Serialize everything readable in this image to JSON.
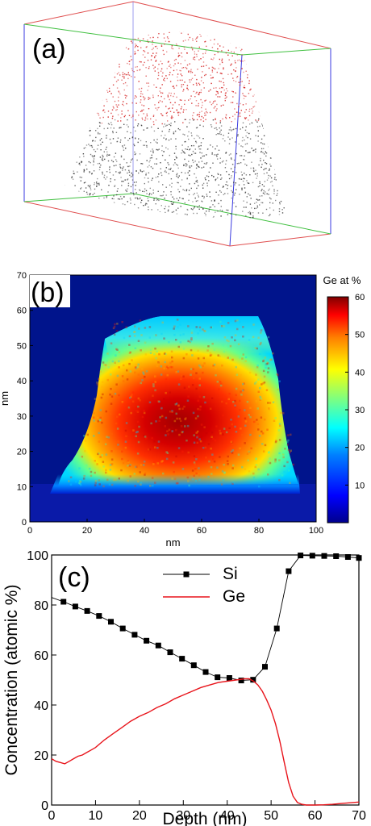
{
  "panels": {
    "a": {
      "label": "(a)"
    },
    "b": {
      "label": "(b)"
    },
    "c": {
      "label": "(c)"
    }
  },
  "colors": {
    "si_series": "#000000",
    "ge_series": "#e8141b",
    "box_red": "#e05050",
    "box_green": "#40c040",
    "box_blue": "#3a3ae0",
    "heatmap_background": "#00148c"
  },
  "chart_data": [
    {
      "type": "scatter",
      "panel": "a",
      "description_free": true,
      "point_colors": [
        "#d42020",
        "#3a3a3a"
      ]
    },
    {
      "type": "heatmap",
      "panel": "b",
      "xlabel": "nm",
      "ylabel": "nm",
      "xlim": [
        0,
        100
      ],
      "ylim": [
        0,
        70
      ],
      "x_ticks": [
        0,
        20,
        40,
        60,
        80,
        100
      ],
      "y_ticks": [
        0,
        10,
        20,
        30,
        40,
        50,
        60,
        70
      ],
      "colorbar": {
        "title": "Ge at %",
        "range": [
          0,
          60
        ],
        "ticks": [
          10,
          20,
          30,
          40,
          50,
          60
        ]
      }
    },
    {
      "type": "line",
      "panel": "c",
      "xlabel": "Depth (nm)",
      "ylabel": "Concentration (atomic %)",
      "xlim": [
        0,
        70
      ],
      "ylim": [
        0,
        100
      ],
      "x_ticks": [
        0,
        10,
        20,
        30,
        40,
        50,
        60,
        70
      ],
      "y_ticks": [
        0,
        20,
        40,
        60,
        80,
        100
      ],
      "legend_position": "top-center",
      "series": [
        {
          "name": "Si",
          "marker": "square",
          "x": [
            0,
            2.7,
            5.4,
            8.1,
            10.8,
            13.5,
            16.2,
            18.9,
            21.6,
            24.3,
            27.0,
            29.7,
            32.4,
            35.1,
            37.8,
            40.5,
            43.2,
            45.9,
            48.6,
            51.3,
            54.0,
            56.7,
            59.4,
            62.1,
            64.8,
            67.5,
            70.0
          ],
          "y": [
            83,
            81.3,
            79.4,
            77.6,
            75.6,
            73.3,
            70.6,
            68.1,
            65.7,
            63.8,
            61.1,
            58.5,
            55.9,
            53.2,
            51.1,
            50.8,
            49.8,
            50.1,
            55.3,
            70.6,
            93.5,
            99.8,
            99.7,
            99.6,
            99.5,
            99.2,
            98.8
          ],
          "marked_points": [
            1,
            2,
            3,
            4,
            5,
            6,
            7,
            8,
            9,
            10,
            11,
            12,
            13,
            14,
            15,
            16,
            17,
            18,
            19,
            20,
            21,
            22,
            23,
            24,
            25,
            26
          ]
        },
        {
          "name": "Ge",
          "marker": "none",
          "x": [
            0,
            1,
            2,
            3,
            4,
            5,
            6,
            7,
            8,
            9,
            10,
            12,
            14,
            16,
            18,
            20,
            22,
            24,
            26,
            28,
            30,
            32,
            34,
            36,
            38,
            40,
            42,
            44,
            45,
            46,
            47,
            48,
            49,
            50,
            51,
            52,
            53,
            54,
            55,
            56,
            57,
            58,
            60,
            62,
            64,
            66,
            68,
            70
          ],
          "y": [
            18.5,
            17.5,
            17.0,
            16.5,
            17.5,
            18.5,
            19.5,
            20.0,
            21.0,
            22.0,
            23.0,
            26.0,
            28.5,
            31.0,
            33.5,
            35.5,
            37.0,
            39.0,
            40.5,
            42.5,
            44.0,
            45.5,
            47.0,
            48.0,
            49.0,
            49.5,
            50.0,
            50.5,
            50.5,
            49.5,
            48.0,
            45.5,
            42.0,
            38.0,
            32.5,
            25.5,
            17.0,
            9.0,
            3.5,
            1.0,
            0.3,
            0.0,
            0.0,
            0.1,
            0.3,
            0.6,
            0.9,
            1.2
          ]
        }
      ]
    }
  ]
}
